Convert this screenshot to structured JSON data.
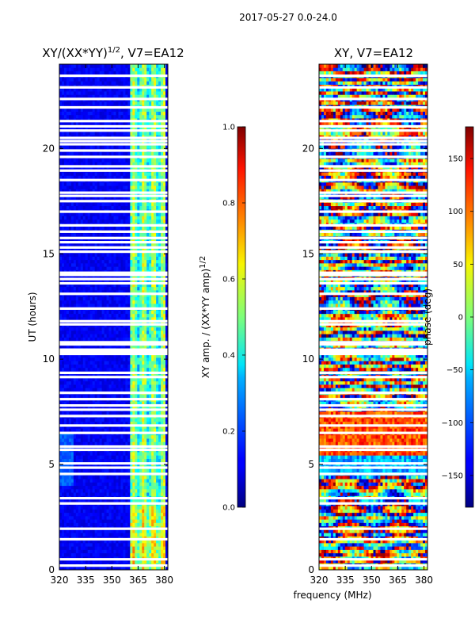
{
  "figure": {
    "suptitle": "2017-05-27 0.0-24.0",
    "xlabel": "frequency (MHz)"
  },
  "chart_data": [
    {
      "type": "heatmap",
      "title_main": "XY/(XX*YY)",
      "title_sup": "1/2",
      "title_tail": ", V7=EA12",
      "ylabel": "UT (hours)",
      "xlim": [
        320,
        382
      ],
      "ylim": [
        0,
        24
      ],
      "xticks": [
        "320",
        "335",
        "350",
        "365",
        "380"
      ],
      "xtick_values": [
        320,
        335,
        350,
        365,
        380
      ],
      "yticks": [
        "0",
        "5",
        "10",
        "15",
        "20"
      ],
      "ytick_values": [
        0,
        5,
        10,
        15,
        20
      ],
      "colorbar": {
        "label_main": "XY amp. / (XX*YY amp)",
        "label_sup": "1/2",
        "range": [
          0.0,
          1.0
        ],
        "ticks": [
          "0.0",
          "0.2",
          "0.4",
          "0.6",
          "0.8",
          "1.0"
        ],
        "tick_values": [
          0.0,
          0.2,
          0.4,
          0.6,
          0.8,
          1.0
        ]
      },
      "bright_band_mhz": [
        361,
        380
      ],
      "masked_hours": [
        0.2,
        0.5,
        1.45,
        1.95,
        3.15,
        3.4,
        4.55,
        4.85,
        5.05,
        5.7,
        5.85,
        6.5,
        6.85,
        7.3,
        7.6,
        7.8,
        8.1,
        8.4,
        9.15,
        9.35,
        10.25,
        10.35,
        10.45,
        10.7,
        10.8,
        11.65,
        11.8,
        12.4,
        13.1,
        13.6,
        13.8,
        14.0,
        14.1,
        15.1,
        15.3,
        15.55,
        15.75,
        16.05,
        16.35,
        17.0,
        17.5,
        17.75,
        17.9,
        18.5,
        18.95,
        19.15,
        19.6,
        19.9,
        20.2,
        20.35,
        20.5,
        20.85,
        21.05,
        21.3,
        21.95,
        22.35,
        22.9,
        23.45
      ]
    },
    {
      "type": "heatmap",
      "title": "XY, V7=EA12",
      "xlim": [
        320,
        382
      ],
      "ylim": [
        0,
        24
      ],
      "xticks": [
        "320",
        "335",
        "350",
        "365",
        "380"
      ],
      "xtick_values": [
        320,
        335,
        350,
        365,
        380
      ],
      "yticks": [
        "0",
        "5",
        "10",
        "15",
        "20"
      ],
      "ytick_values": [
        0,
        5,
        10,
        15,
        20
      ],
      "colorbar": {
        "label": "phase (deg)",
        "range": [
          -180,
          180
        ],
        "ticks": [
          "−150",
          "−100",
          "−50",
          "0",
          "50",
          "100",
          "150"
        ],
        "tick_values": [
          -150,
          -100,
          -50,
          0,
          50,
          100,
          150
        ]
      },
      "masked_hours": [
        0.2,
        0.5,
        1.45,
        1.95,
        3.15,
        3.4,
        4.55,
        4.85,
        5.05,
        5.7,
        5.85,
        6.5,
        6.85,
        7.3,
        7.6,
        7.8,
        8.1,
        8.4,
        9.15,
        9.35,
        10.25,
        10.35,
        10.45,
        10.7,
        10.8,
        11.65,
        11.8,
        12.4,
        13.1,
        13.6,
        13.8,
        14.0,
        14.1,
        15.1,
        15.3,
        15.55,
        15.75,
        16.05,
        16.35,
        17.0,
        17.5,
        17.75,
        17.9,
        18.5,
        18.95,
        19.15,
        19.6,
        19.9,
        20.2,
        20.35,
        20.5,
        20.85,
        21.05,
        21.3,
        21.95,
        22.35,
        22.9,
        23.45
      ]
    }
  ]
}
